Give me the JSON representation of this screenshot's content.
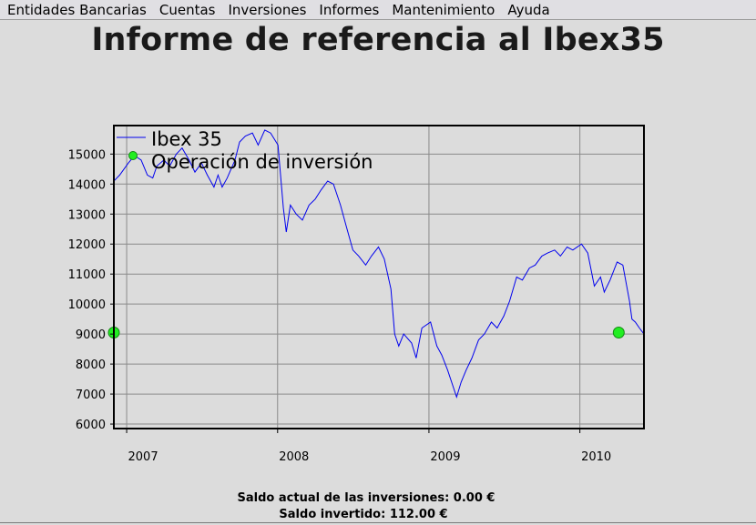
{
  "menu": {
    "items": [
      "Entidades Bancarias",
      "Cuentas",
      "Inversiones",
      "Informes",
      "Mantenimiento",
      "Ayuda"
    ]
  },
  "page": {
    "title": "Informe de referencia al Ibex35"
  },
  "footer": {
    "saldo_actual": "Saldo actual de las inversiones: 0.00 €",
    "saldo_invertido": "Saldo invertido: 112.00 €"
  },
  "chart_data": {
    "type": "line",
    "title": "",
    "xlabel": "",
    "ylabel": "",
    "x_range": [
      "2006-12-01",
      "2010-06-05"
    ],
    "ylim": [
      5850,
      15950
    ],
    "x_ticks": [
      "2007",
      "2008",
      "2009",
      "2010"
    ],
    "y_ticks": [
      6000,
      7000,
      8000,
      9000,
      10000,
      11000,
      12000,
      13000,
      14000,
      15000
    ],
    "grid": true,
    "legend_position": "top-left",
    "colors": {
      "series": "#0000ee",
      "operation": "#22ee22",
      "grid": "#8a8a8a",
      "axes": "#000000"
    },
    "series": [
      {
        "name": "Ibex 35",
        "x": [
          "2006-12-01",
          "2006-12-15",
          "2007-01-05",
          "2007-01-20",
          "2007-02-05",
          "2007-02-20",
          "2007-03-05",
          "2007-03-15",
          "2007-04-01",
          "2007-04-15",
          "2007-05-01",
          "2007-05-15",
          "2007-06-01",
          "2007-06-15",
          "2007-07-01",
          "2007-07-15",
          "2007-07-31",
          "2007-08-10",
          "2007-08-20",
          "2007-09-01",
          "2007-09-20",
          "2007-10-01",
          "2007-10-15",
          "2007-11-01",
          "2007-11-15",
          "2007-12-01",
          "2007-12-15",
          "2008-01-02",
          "2008-01-15",
          "2008-01-22",
          "2008-02-01",
          "2008-02-15",
          "2008-03-01",
          "2008-03-17",
          "2008-04-01",
          "2008-04-15",
          "2008-05-01",
          "2008-05-15",
          "2008-06-01",
          "2008-06-15",
          "2008-07-01",
          "2008-07-15",
          "2008-08-01",
          "2008-08-15",
          "2008-09-01",
          "2008-09-15",
          "2008-10-01",
          "2008-10-10",
          "2008-10-20",
          "2008-11-01",
          "2008-11-20",
          "2008-12-01",
          "2008-12-15",
          "2009-01-05",
          "2009-01-20",
          "2009-02-01",
          "2009-02-15",
          "2009-03-09",
          "2009-03-20",
          "2009-04-01",
          "2009-04-15",
          "2009-05-01",
          "2009-05-15",
          "2009-06-01",
          "2009-06-15",
          "2009-07-01",
          "2009-07-15",
          "2009-08-01",
          "2009-08-15",
          "2009-09-01",
          "2009-09-15",
          "2009-10-01",
          "2009-10-15",
          "2009-11-01",
          "2009-11-15",
          "2009-12-01",
          "2009-12-15",
          "2010-01-05",
          "2010-01-20",
          "2010-02-05",
          "2010-02-20",
          "2010-03-01",
          "2010-03-15",
          "2010-04-01",
          "2010-04-15",
          "2010-05-01",
          "2010-05-07",
          "2010-05-15",
          "2010-05-25",
          "2010-06-05"
        ],
        "values": [
          14100,
          14300,
          14700,
          14950,
          14800,
          14300,
          14200,
          14600,
          14800,
          14600,
          15000,
          15200,
          14800,
          14400,
          14700,
          14300,
          13900,
          14300,
          13900,
          14200,
          14800,
          15400,
          15600,
          15700,
          15300,
          15800,
          15700,
          15300,
          13200,
          12400,
          13300,
          13000,
          12800,
          13300,
          13500,
          13800,
          14100,
          14000,
          13300,
          12600,
          11800,
          11600,
          11300,
          11600,
          11900,
          11500,
          10500,
          9000,
          8600,
          9000,
          8700,
          8200,
          9200,
          9400,
          8600,
          8300,
          7800,
          6900,
          7400,
          7800,
          8200,
          8800,
          9000,
          9400,
          9200,
          9600,
          10100,
          10900,
          10800,
          11200,
          11300,
          11600,
          11700,
          11800,
          11600,
          11900,
          11800,
          12000,
          11700,
          10600,
          10900,
          10400,
          10800,
          11400,
          11300,
          10100,
          9500,
          9400,
          9200,
          9000
        ]
      }
    ],
    "operations": {
      "name": "Operación de inversión",
      "points": [
        {
          "x": "2006-12-01",
          "y": 9050
        },
        {
          "x": "2010-04-05",
          "y": 9050
        }
      ]
    }
  }
}
